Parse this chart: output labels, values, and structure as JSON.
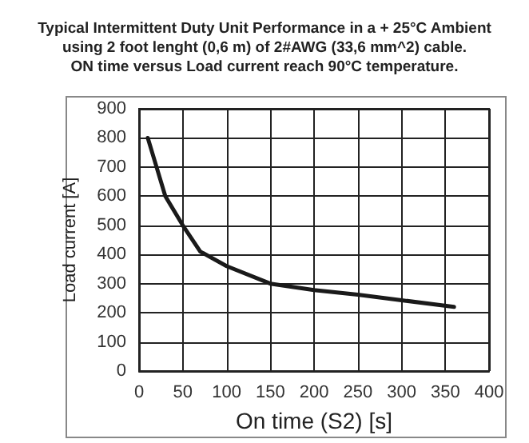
{
  "chart_data": {
    "type": "line",
    "title": "Typical Intermittent Duty Unit Performance in a + 25°C Ambient\nusing 2 foot lenght (0,6 m) of 2#AWG (33,6 mm^2) cable.\nON time versus Load current reach 90°C temperature.",
    "xlabel": "On time (S2) [s]",
    "ylabel": "Load current [A]",
    "x": [
      10,
      20,
      30,
      50,
      70,
      100,
      150,
      200,
      250,
      300,
      360
    ],
    "series": [
      {
        "color": "#1a1a1a",
        "values": [
          800,
          700,
          600,
          500,
          410,
          360,
          300,
          278,
          262,
          243,
          220
        ]
      }
    ],
    "xlim": [
      0,
      400
    ],
    "xticks": [
      0,
      50,
      100,
      150,
      200,
      250,
      300,
      350,
      400
    ],
    "ylim": [
      0,
      900
    ],
    "yticks": [
      0,
      100,
      200,
      300,
      400,
      500,
      600,
      700,
      800,
      900
    ],
    "grid": true,
    "marker": "none",
    "line_style": "solid"
  }
}
